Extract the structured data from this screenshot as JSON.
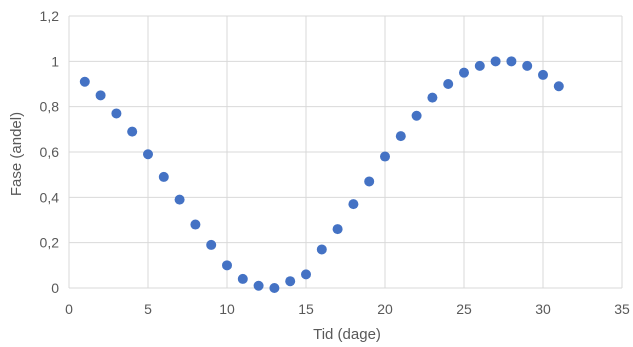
{
  "chart_data": {
    "type": "scatter",
    "title": "",
    "xlabel": "Tid (dage)",
    "ylabel": "Fase (andel)",
    "xlim": [
      0,
      35
    ],
    "ylim": [
      0,
      1.2
    ],
    "x_ticks": [
      "0",
      "5",
      "10",
      "15",
      "20",
      "25",
      "30",
      "35"
    ],
    "y_ticks": [
      "0",
      "0,2",
      "0,4",
      "0,6",
      "0,8",
      "1",
      "1,2"
    ],
    "grid": true,
    "legend": "none",
    "marker_color": "#4472c4",
    "series": [
      {
        "x": [
          1,
          2,
          3,
          4,
          5,
          6,
          7,
          8,
          9,
          10,
          11,
          12,
          13,
          14,
          15,
          16,
          17,
          18,
          19,
          20,
          21,
          22,
          23,
          24,
          25,
          26,
          27,
          28,
          29,
          30,
          31
        ],
        "y": [
          0.91,
          0.85,
          0.77,
          0.69,
          0.59,
          0.49,
          0.39,
          0.28,
          0.19,
          0.1,
          0.04,
          0.01,
          0.0,
          0.03,
          0.06,
          0.17,
          0.26,
          0.37,
          0.47,
          0.58,
          0.67,
          0.76,
          0.84,
          0.9,
          0.95,
          0.98,
          1.0,
          1.0,
          0.98,
          0.94,
          0.89
        ]
      }
    ]
  }
}
